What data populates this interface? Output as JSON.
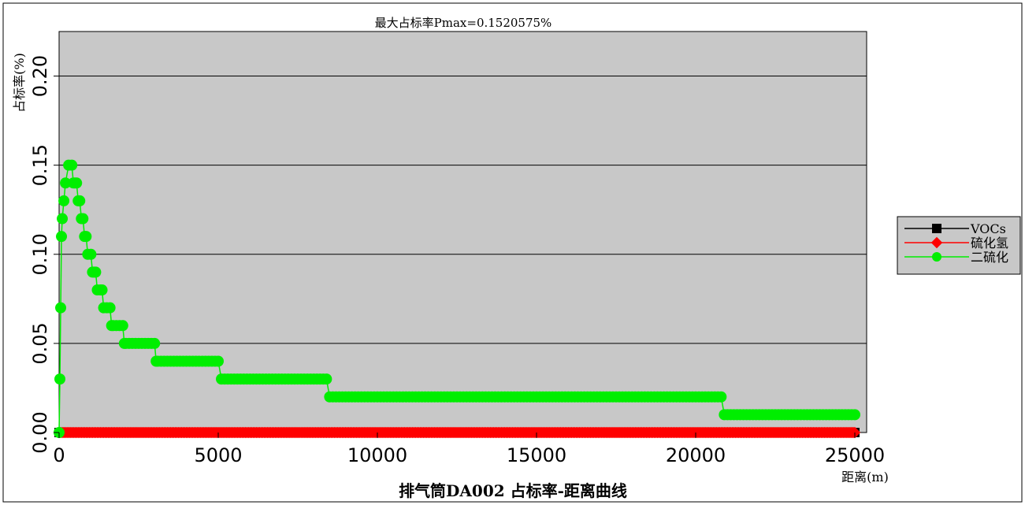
{
  "chart_data": {
    "type": "line",
    "title": "排气筒DA002 占标率-距离曲线",
    "subtitle": "最大占标率Pmax=0.1520575%",
    "xlabel": "距离(m)",
    "ylabel": "占标率(%)",
    "xlim": [
      0,
      25000
    ],
    "ylim": [
      0,
      0.2
    ],
    "y_axis_top": 0.225,
    "x_ticks": [
      0,
      5000,
      10000,
      15000,
      20000,
      25000
    ],
    "x_tick_labels": [
      "0",
      "5000",
      "10000",
      "15000",
      "20000",
      "25000"
    ],
    "y_ticks": [
      0.0,
      0.05,
      0.1,
      0.15,
      0.2
    ],
    "y_tick_labels": [
      "0.00",
      "0.05",
      "0.10",
      "0.15",
      "0.20"
    ],
    "grid": "horizontal",
    "plot_background": "#c8c8c8",
    "legend_position": "right",
    "series": [
      {
        "name": "VOCs",
        "color": "#000000",
        "marker": "square",
        "points": [
          [
            0,
            0.0
          ],
          [
            5000,
            0.0
          ],
          [
            25000,
            0.0
          ]
        ],
        "sample_step": 100
      },
      {
        "name": "硫化氢",
        "color": "#ff0000",
        "marker": "diamond",
        "points": [
          [
            0,
            0.0
          ],
          [
            25000,
            0.0
          ]
        ],
        "sample_step": 50
      },
      {
        "name": "二硫化",
        "color": "#00ee00",
        "marker": "circle",
        "points": [
          [
            0,
            0.0
          ],
          [
            25,
            0.03
          ],
          [
            50,
            0.07
          ],
          [
            75,
            0.11
          ],
          [
            100,
            0.12
          ],
          [
            150,
            0.13
          ],
          [
            200,
            0.14
          ],
          [
            300,
            0.15
          ],
          [
            400,
            0.15
          ],
          [
            450,
            0.14
          ],
          [
            550,
            0.14
          ],
          [
            600,
            0.13
          ],
          [
            650,
            0.13
          ],
          [
            700,
            0.12
          ],
          [
            750,
            0.12
          ],
          [
            800,
            0.11
          ],
          [
            850,
            0.11
          ],
          [
            900,
            0.1
          ],
          [
            1000,
            0.1
          ],
          [
            1050,
            0.09
          ],
          [
            1150,
            0.09
          ],
          [
            1200,
            0.08
          ],
          [
            1350,
            0.08
          ],
          [
            1400,
            0.07
          ],
          [
            1600,
            0.07
          ],
          [
            1650,
            0.06
          ],
          [
            2000,
            0.06
          ],
          [
            2050,
            0.05
          ],
          [
            3000,
            0.05
          ],
          [
            3050,
            0.04
          ],
          [
            5000,
            0.04
          ],
          [
            5100,
            0.03
          ],
          [
            8400,
            0.03
          ],
          [
            8500,
            0.02
          ],
          [
            20800,
            0.02
          ],
          [
            20900,
            0.01
          ],
          [
            25000,
            0.01
          ]
        ],
        "sample_step": 100
      }
    ]
  }
}
